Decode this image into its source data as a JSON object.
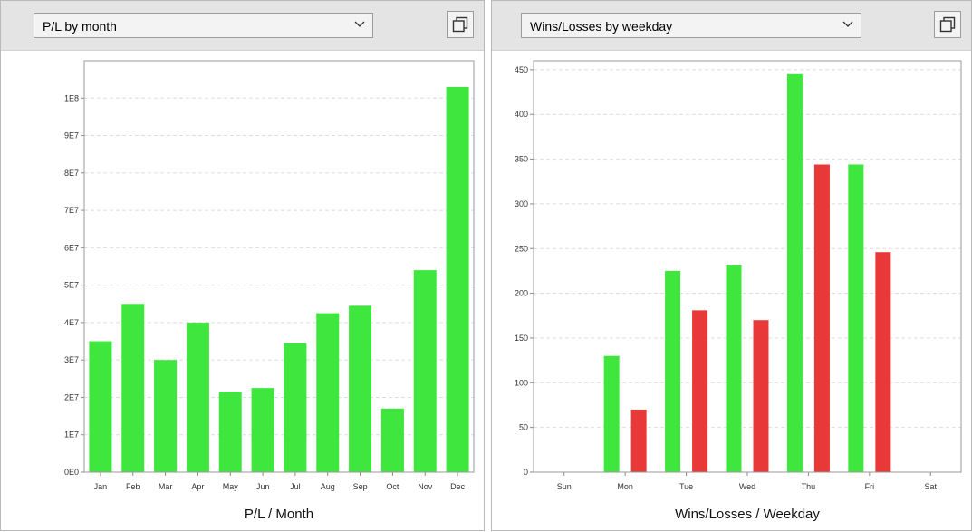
{
  "panels": [
    {
      "dropdown_label": "P/L by month",
      "chart_data": {
        "type": "bar",
        "title": "",
        "xlabel": "P/L / Month",
        "ylabel": "",
        "categories": [
          "Jan",
          "Feb",
          "Mar",
          "Apr",
          "May",
          "Jun",
          "Jul",
          "Aug",
          "Sep",
          "Oct",
          "Nov",
          "Dec"
        ],
        "series": [
          {
            "color": "#3ee63e",
            "values": [
              35000000,
              45000000,
              30000000,
              40000000,
              21500000,
              22500000,
              34500000,
              42500000,
              44500000,
              17000000,
              54000000,
              103000000
            ]
          }
        ],
        "ylim": [
          0,
          110000000
        ],
        "yticks": [
          0,
          10000000,
          20000000,
          30000000,
          40000000,
          50000000,
          60000000,
          70000000,
          80000000,
          90000000,
          100000000
        ],
        "ytick_labels": [
          "0E0",
          "1E7",
          "2E7",
          "3E7",
          "4E7",
          "5E7",
          "6E7",
          "7E7",
          "8E7",
          "9E7",
          "1E8"
        ],
        "grid": true
      }
    },
    {
      "dropdown_label": "Wins/Losses by weekday",
      "chart_data": {
        "type": "bar",
        "title": "",
        "xlabel": "Wins/Losses / Weekday",
        "ylabel": "",
        "categories": [
          "Sun",
          "Mon",
          "Tue",
          "Wed",
          "Thu",
          "Fri",
          "Sat"
        ],
        "series": [
          {
            "color": "#3ee63e",
            "values": [
              0,
              130,
              225,
              232,
              445,
              344,
              0
            ]
          },
          {
            "color": "#e83838",
            "values": [
              0,
              70,
              181,
              170,
              344,
              246,
              0
            ]
          }
        ],
        "ylim": [
          0,
          460
        ],
        "yticks": [
          0,
          50,
          100,
          150,
          200,
          250,
          300,
          350,
          400,
          450
        ],
        "ytick_labels": [
          "0",
          "50",
          "100",
          "150",
          "200",
          "250",
          "300",
          "350",
          "400",
          "450"
        ],
        "grid": true
      }
    }
  ]
}
